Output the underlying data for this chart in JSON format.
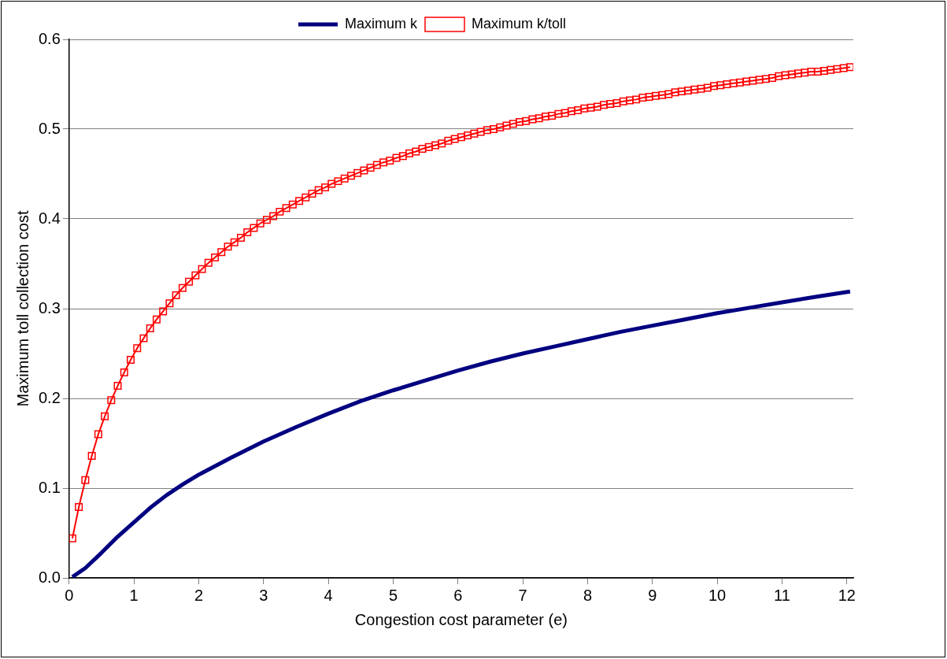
{
  "chart_data": {
    "type": "line",
    "xlabel": "Congestion cost parameter (e)",
    "ylabel": "Maximum toll collection cost",
    "xlim": [
      0,
      12.1
    ],
    "xticks": [
      0,
      1,
      2,
      3,
      4,
      5,
      6,
      7,
      8,
      9,
      10,
      11,
      12
    ],
    "ylim": [
      0,
      0.6
    ],
    "yticks": [
      {
        "value": 0,
        "label": "0.0"
      },
      0.1,
      0.2,
      0.3,
      0.4,
      0.5,
      0.6
    ],
    "grid": "y",
    "legend": "top",
    "series": [
      {
        "name": "Maximum k",
        "color": "#000080",
        "marker": "none",
        "x": [
          0.05,
          0.25,
          0.5,
          0.75,
          1,
          1.25,
          1.5,
          1.75,
          2,
          2.5,
          3,
          3.5,
          4,
          4.5,
          5,
          5.5,
          6,
          6.5,
          7,
          7.5,
          8,
          8.5,
          9,
          9.5,
          10,
          10.5,
          11,
          11.5,
          12.05
        ],
        "values": [
          0.001,
          0.011,
          0.028,
          0.046,
          0.062,
          0.078,
          0.092,
          0.104,
          0.115,
          0.134,
          0.152,
          0.168,
          0.183,
          0.197,
          0.209,
          0.22,
          0.231,
          0.241,
          0.25,
          0.258,
          0.266,
          0.274,
          0.281,
          0.288,
          0.295,
          0.301,
          0.307,
          0.313,
          0.319
        ]
      },
      {
        "name": "Maximum k/toll",
        "color": "#ff0000",
        "marker": "square",
        "x": [
          0.05,
          0.15,
          0.25,
          0.35,
          0.45,
          0.55,
          0.65,
          0.75,
          0.85,
          0.95,
          1.05,
          1.15,
          1.25,
          1.35,
          1.45,
          1.55,
          1.65,
          1.75,
          1.85,
          1.95,
          2.05,
          2.15,
          2.25,
          2.35,
          2.45,
          2.55,
          2.65,
          2.75,
          2.85,
          2.95,
          3.05,
          3.15,
          3.25,
          3.35,
          3.45,
          3.55,
          3.65,
          3.75,
          3.85,
          3.95,
          4.05,
          4.15,
          4.25,
          4.35,
          4.45,
          4.55,
          4.65,
          4.75,
          4.85,
          4.95,
          5.05,
          5.15,
          5.25,
          5.35,
          5.45,
          5.55,
          5.65,
          5.75,
          5.85,
          5.95,
          6.05,
          6.15,
          6.25,
          6.35,
          6.45,
          6.55,
          6.65,
          6.75,
          6.85,
          6.95,
          7.05,
          7.15,
          7.25,
          7.35,
          7.45,
          7.55,
          7.65,
          7.75,
          7.85,
          7.95,
          8.05,
          8.15,
          8.25,
          8.35,
          8.45,
          8.55,
          8.65,
          8.75,
          8.85,
          8.95,
          9.05,
          9.15,
          9.25,
          9.35,
          9.45,
          9.55,
          9.65,
          9.75,
          9.85,
          9.95,
          10.05,
          10.15,
          10.25,
          10.35,
          10.45,
          10.55,
          10.65,
          10.75,
          10.85,
          10.95,
          11.05,
          11.15,
          11.25,
          11.35,
          11.45,
          11.55,
          11.65,
          11.75,
          11.85,
          11.95,
          12.05
        ],
        "values": [
          0.044,
          0.079,
          0.109,
          0.136,
          0.16,
          0.18,
          0.198,
          0.214,
          0.229,
          0.243,
          0.256,
          0.267,
          0.278,
          0.288,
          0.297,
          0.306,
          0.315,
          0.323,
          0.33,
          0.337,
          0.344,
          0.351,
          0.357,
          0.363,
          0.369,
          0.374,
          0.379,
          0.385,
          0.39,
          0.395,
          0.399,
          0.403,
          0.408,
          0.412,
          0.416,
          0.42,
          0.424,
          0.428,
          0.432,
          0.435,
          0.439,
          0.442,
          0.445,
          0.448,
          0.451,
          0.454,
          0.457,
          0.46,
          0.463,
          0.465,
          0.468,
          0.47,
          0.473,
          0.475,
          0.478,
          0.48,
          0.482,
          0.484,
          0.487,
          0.489,
          0.491,
          0.493,
          0.495,
          0.497,
          0.499,
          0.5,
          0.502,
          0.504,
          0.506,
          0.508,
          0.509,
          0.511,
          0.512,
          0.514,
          0.515,
          0.517,
          0.518,
          0.52,
          0.521,
          0.523,
          0.524,
          0.525,
          0.527,
          0.528,
          0.529,
          0.531,
          0.532,
          0.533,
          0.535,
          0.536,
          0.537,
          0.538,
          0.539,
          0.541,
          0.542,
          0.543,
          0.544,
          0.545,
          0.546,
          0.548,
          0.549,
          0.55,
          0.551,
          0.552,
          0.553,
          0.554,
          0.555,
          0.556,
          0.557,
          0.559,
          0.56,
          0.561,
          0.562,
          0.563,
          0.564,
          0.564,
          0.565,
          0.566,
          0.567,
          0.568,
          0.569
        ]
      }
    ]
  }
}
